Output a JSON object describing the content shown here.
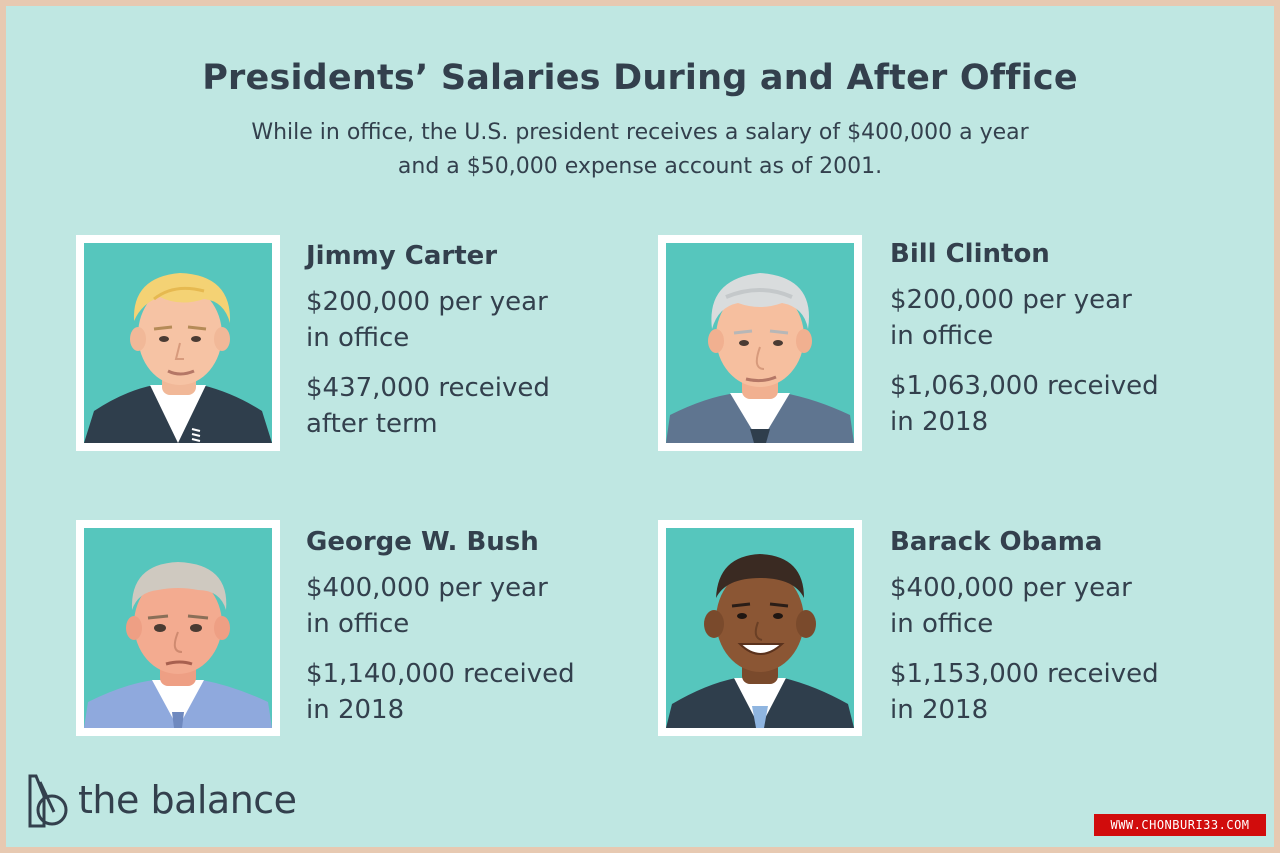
{
  "header": {
    "title": "Presidents’ Salaries During and After Office",
    "subtitle_line1": "While in office, the U.S. president receives a salary of $400,000 a year",
    "subtitle_line2": "and a $50,000 expense account as of 2001."
  },
  "presidents": [
    {
      "name": "Jimmy Carter",
      "salary_line1": "$200,000 per year",
      "salary_line2": "in office",
      "after_line1": "$437,000 received",
      "after_line2": "after term"
    },
    {
      "name": "Bill Clinton",
      "salary_line1": "$200,000 per year",
      "salary_line2": "in office",
      "after_line1": "$1,063,000 received",
      "after_line2": "in 2018"
    },
    {
      "name": "George W. Bush",
      "salary_line1": "$400,000 per year",
      "salary_line2": "in office",
      "after_line1": "$1,140,000 received",
      "after_line2": "in 2018"
    },
    {
      "name": "Barack Obama",
      "salary_line1": "$400,000 per year",
      "salary_line2": "in office",
      "after_line1": "$1,153,000 received",
      "after_line2": "in 2018"
    }
  ],
  "brand": {
    "name": "the balance"
  },
  "watermark": {
    "text": "WWW.CHONBURI33.COM"
  },
  "colors": {
    "background": "#bfe7e2",
    "portrait_bg": "#56c6bd",
    "text": "#33404d",
    "frame": "#e7c9b1"
  }
}
